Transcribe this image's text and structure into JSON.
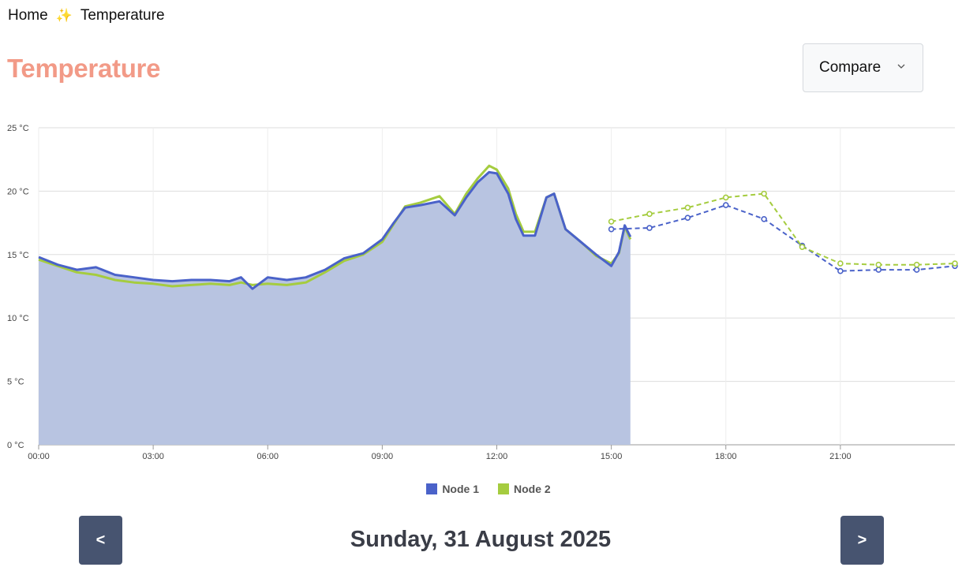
{
  "breadcrumb": {
    "home": "Home",
    "separator_icon": "✨",
    "current": "Temperature"
  },
  "page": {
    "title": "Temperature"
  },
  "compare": {
    "label": "Compare"
  },
  "chart_data": {
    "type": "line",
    "y_unit": "°C",
    "ylim": [
      0,
      25
    ],
    "y_ticks": [
      "0 °C",
      "5 °C",
      "10 °C",
      "15 °C",
      "20 °C",
      "25 °C"
    ],
    "x_ticks": [
      "00:00",
      "03:00",
      "06:00",
      "09:00",
      "12:00",
      "15:00",
      "18:00",
      "21:00"
    ],
    "xlim_hours": [
      0,
      24
    ],
    "grid": true,
    "legend_placement": "bottom-center",
    "series": [
      {
        "name": "Node 1",
        "color": "#4a62c9",
        "fill": true,
        "measured": [
          [
            0,
            14.8
          ],
          [
            0.5,
            14.2
          ],
          [
            1,
            13.8
          ],
          [
            1.5,
            14.0
          ],
          [
            2,
            13.4
          ],
          [
            2.5,
            13.2
          ],
          [
            3,
            13.0
          ],
          [
            3.5,
            12.9
          ],
          [
            4,
            13.0
          ],
          [
            4.5,
            13.0
          ],
          [
            5,
            12.9
          ],
          [
            5.3,
            13.2
          ],
          [
            5.6,
            12.3
          ],
          [
            6,
            13.2
          ],
          [
            6.5,
            13.0
          ],
          [
            7,
            13.2
          ],
          [
            7.5,
            13.8
          ],
          [
            8,
            14.7
          ],
          [
            8.5,
            15.1
          ],
          [
            9,
            16.2
          ],
          [
            9.3,
            17.5
          ],
          [
            9.6,
            18.7
          ],
          [
            10,
            18.9
          ],
          [
            10.5,
            19.2
          ],
          [
            10.9,
            18.1
          ],
          [
            11.2,
            19.5
          ],
          [
            11.5,
            20.7
          ],
          [
            11.8,
            21.5
          ],
          [
            12,
            21.4
          ],
          [
            12.3,
            19.8
          ],
          [
            12.5,
            17.8
          ],
          [
            12.7,
            16.5
          ],
          [
            13,
            16.5
          ],
          [
            13.3,
            19.5
          ],
          [
            13.5,
            19.8
          ],
          [
            13.8,
            17.0
          ],
          [
            14.2,
            16.0
          ],
          [
            14.6,
            15.0
          ],
          [
            15,
            14.1
          ],
          [
            15.2,
            15.2
          ],
          [
            15.35,
            17.3
          ],
          [
            15.5,
            16.4
          ]
        ],
        "forecast": [
          [
            15,
            17.0
          ],
          [
            16,
            17.1
          ],
          [
            17,
            17.9
          ],
          [
            18,
            18.9
          ],
          [
            19,
            17.8
          ],
          [
            20,
            15.7
          ],
          [
            21,
            13.7
          ],
          [
            22,
            13.8
          ],
          [
            23,
            13.8
          ],
          [
            24,
            14.1
          ]
        ]
      },
      {
        "name": "Node 2",
        "color": "#a5cc3f",
        "fill": false,
        "measured": [
          [
            0,
            14.6
          ],
          [
            0.5,
            14.1
          ],
          [
            1,
            13.6
          ],
          [
            1.5,
            13.4
          ],
          [
            2,
            13.0
          ],
          [
            2.5,
            12.8
          ],
          [
            3,
            12.7
          ],
          [
            3.5,
            12.5
          ],
          [
            4,
            12.6
          ],
          [
            4.5,
            12.7
          ],
          [
            5,
            12.6
          ],
          [
            5.3,
            12.8
          ],
          [
            5.6,
            12.6
          ],
          [
            6,
            12.7
          ],
          [
            6.5,
            12.6
          ],
          [
            7,
            12.8
          ],
          [
            7.5,
            13.6
          ],
          [
            8,
            14.5
          ],
          [
            8.5,
            15.0
          ],
          [
            9,
            16.0
          ],
          [
            9.3,
            17.4
          ],
          [
            9.6,
            18.8
          ],
          [
            10,
            19.1
          ],
          [
            10.5,
            19.6
          ],
          [
            10.9,
            18.2
          ],
          [
            11.2,
            19.8
          ],
          [
            11.5,
            21.0
          ],
          [
            11.8,
            22.0
          ],
          [
            12,
            21.7
          ],
          [
            12.3,
            20.2
          ],
          [
            12.5,
            18.2
          ],
          [
            12.7,
            16.8
          ],
          [
            13,
            16.8
          ],
          [
            13.3,
            19.5
          ],
          [
            13.5,
            19.8
          ],
          [
            13.8,
            17.0
          ],
          [
            14.2,
            16.0
          ],
          [
            14.6,
            14.9
          ],
          [
            15,
            14.3
          ],
          [
            15.2,
            15.1
          ],
          [
            15.35,
            17.2
          ],
          [
            15.5,
            16.2
          ]
        ],
        "forecast": [
          [
            15,
            17.6
          ],
          [
            16,
            18.2
          ],
          [
            17,
            18.7
          ],
          [
            18,
            19.5
          ],
          [
            19,
            19.8
          ],
          [
            20,
            15.6
          ],
          [
            21,
            14.3
          ],
          [
            22,
            14.2
          ],
          [
            23,
            14.2
          ],
          [
            24,
            14.3
          ]
        ]
      }
    ]
  },
  "navigation": {
    "prev_label": "<",
    "next_label": ">",
    "date": "Sunday, 31 August 2025"
  }
}
